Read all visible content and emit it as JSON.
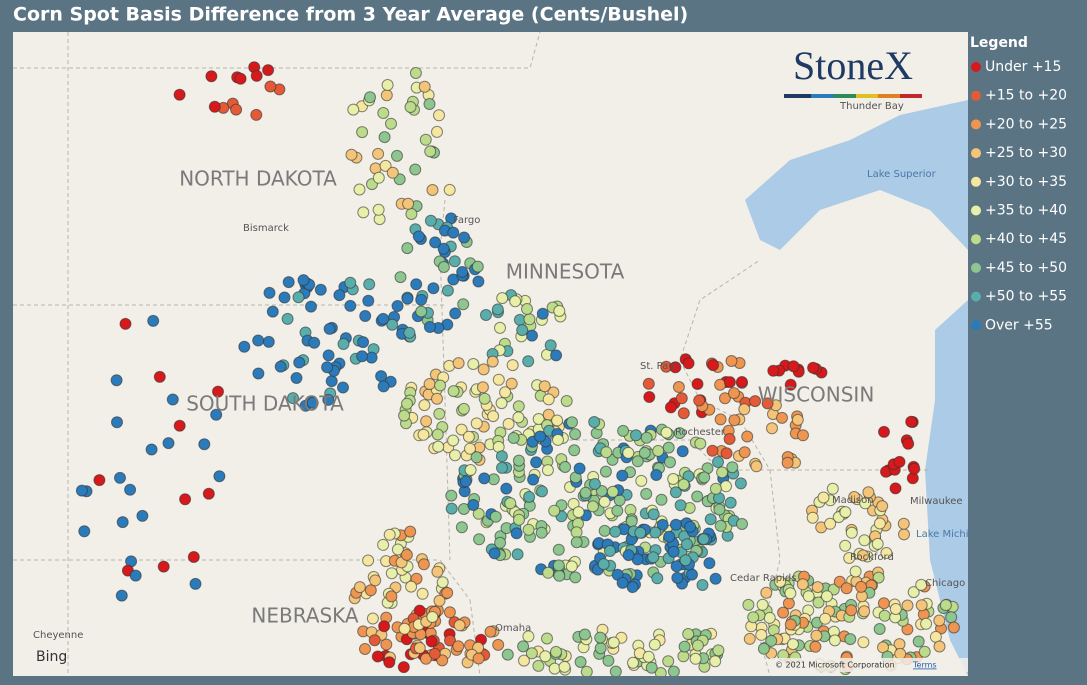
{
  "title": "Corn Spot Basis Difference from 3 Year Average (Cents/Bushel)",
  "legend": {
    "title": "Legend",
    "items": [
      {
        "label": "Under +15",
        "color": "#d7191c"
      },
      {
        "label": "+15 to +20",
        "color": "#e55a36"
      },
      {
        "label": "+20 to +25",
        "color": "#ee9651"
      },
      {
        "label": "+25 to +30",
        "color": "#f4c479"
      },
      {
        "label": "+30 to +35",
        "color": "#f6e7a0"
      },
      {
        "label": "+35 to +40",
        "color": "#e7efa8"
      },
      {
        "label": "+40 to +45",
        "color": "#bcdc8b"
      },
      {
        "label": "+45 to +50",
        "color": "#8dc68e"
      },
      {
        "label": "+50 to +55",
        "color": "#59aeab"
      },
      {
        "label": "Over +55",
        "color": "#2b7bba"
      }
    ]
  },
  "map": {
    "states": [
      "NORTH DAKOTA",
      "MINNESOTA",
      "SOUTH DAKOTA",
      "WISCONSIN",
      "NEBRASKA"
    ],
    "cities": [
      "Bismarck",
      "Fargo",
      "Thunder Bay",
      "Rochester",
      "Madison",
      "Milwaukee",
      "Rockford",
      "Chicago",
      "Cheyenne",
      "Omaha",
      "Cedar Rapids",
      "St. Paul"
    ],
    "lakes": [
      "Lake Superior",
      "Lake Michi"
    ],
    "logo": "StoneX",
    "provider": "Bing",
    "copyright": "© 2021 Microsoft Corporation",
    "terms": "Terms"
  }
}
